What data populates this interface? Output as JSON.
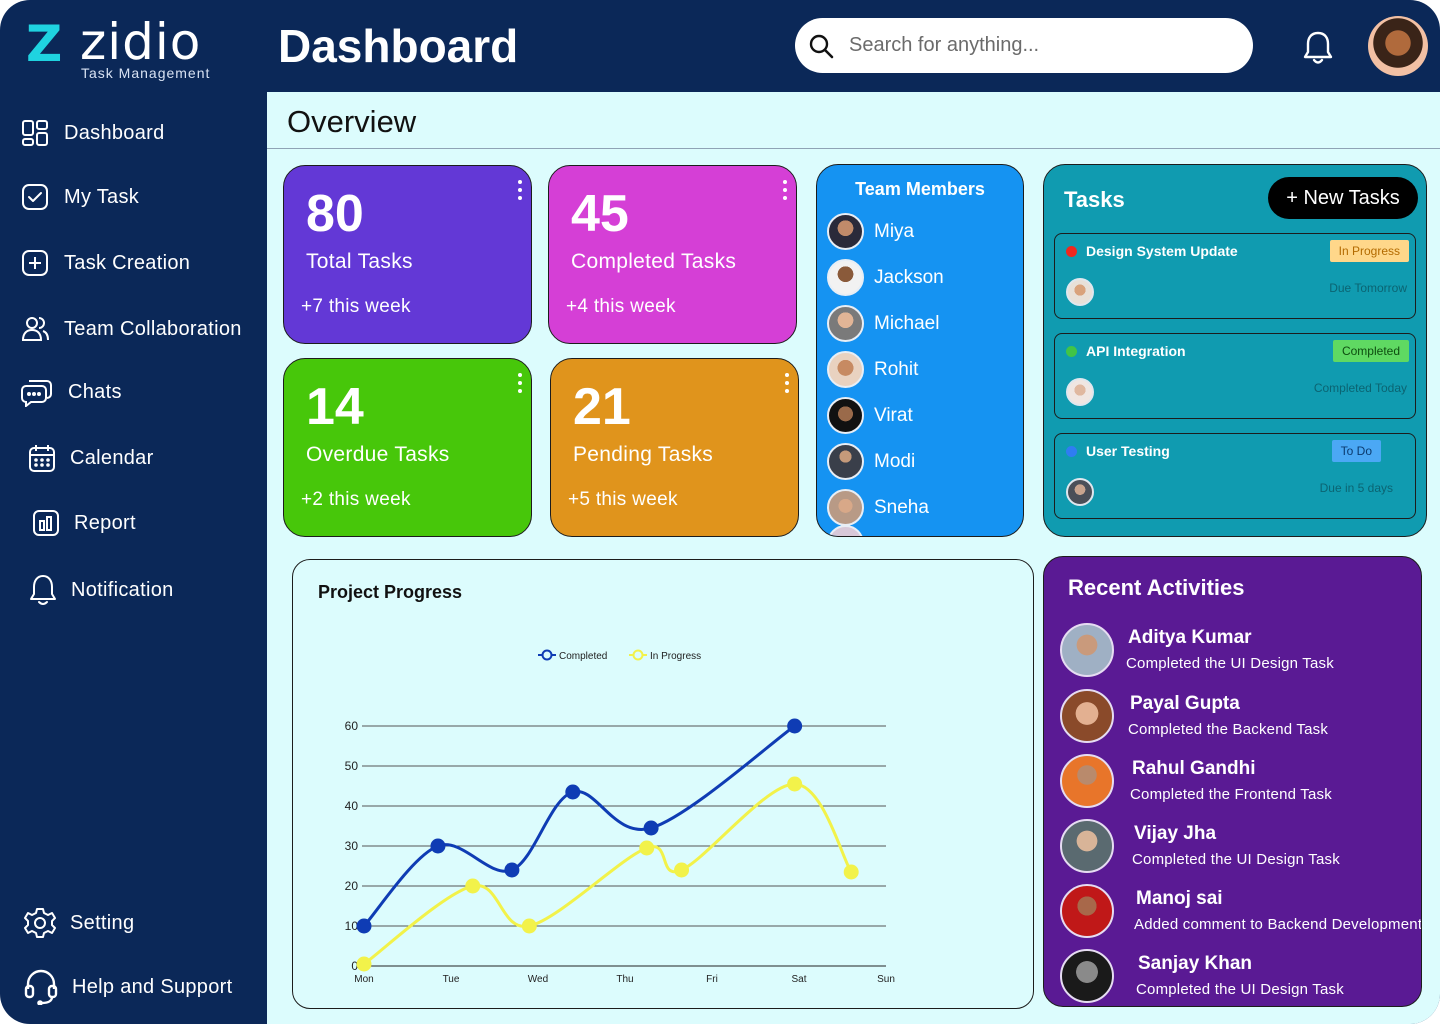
{
  "brand": {
    "name": "zidio",
    "subtitle": "Task Management",
    "accent": "#1fd3e0"
  },
  "header": {
    "title": "Dashboard",
    "search_placeholder": "Search for anything...",
    "bell_icon": "bell-icon",
    "avatar_icon": "user-avatar"
  },
  "sidebar": {
    "items": [
      {
        "label": "Dashboard",
        "icon": "dashboard-grid-icon"
      },
      {
        "label": "My Task",
        "icon": "checkbox-icon"
      },
      {
        "label": "Task Creation",
        "icon": "plus-square-icon"
      },
      {
        "label": "Team Collaboration",
        "icon": "users-icon"
      },
      {
        "label": "Chats",
        "icon": "chat-icon"
      },
      {
        "label": "Calendar",
        "icon": "calendar-icon"
      },
      {
        "label": "Report",
        "icon": "report-icon"
      },
      {
        "label": "Notification",
        "icon": "bell-icon"
      }
    ],
    "bottom": [
      {
        "label": "Setting",
        "icon": "gear-icon"
      },
      {
        "label": "Help and Support",
        "icon": "headset-icon"
      }
    ]
  },
  "overview": {
    "title": "Overview"
  },
  "stats": [
    {
      "value": "80",
      "label": "Total Tasks",
      "week": "+7 this week",
      "color": "#6338d6"
    },
    {
      "value": "45",
      "label": "Completed Tasks",
      "week": "+4 this week",
      "color": "#d53fd6"
    },
    {
      "value": "14",
      "label": "Overdue Tasks",
      "week": "+2 this week",
      "color": "#47c70a"
    },
    {
      "value": "21",
      "label": "Pending Tasks",
      "week": "+5 this week",
      "color": "#e0941c"
    }
  ],
  "team": {
    "title": "Team Members",
    "members": [
      "Miya",
      "Jackson",
      "Michael",
      "Rohit",
      "Virat",
      "Modi",
      "Sneha"
    ]
  },
  "tasks": {
    "title": "Tasks",
    "new_button": "+ New Tasks",
    "items": [
      {
        "title": "Design System Update",
        "status": "In Progress",
        "due": "Due Tomorrow",
        "dot": "#f0281e",
        "badge_bg": "#ffd78a",
        "badge_fg": "#b36a00"
      },
      {
        "title": "API Integration",
        "status": "Completed",
        "due": "Completed Today",
        "dot": "#41c447",
        "badge_bg": "#5fd962",
        "badge_fg": "#0e4d10"
      },
      {
        "title": "User Testing",
        "status": "To Do",
        "due": "Due in 5 days",
        "dot": "#2f7df2",
        "badge_bg": "#4ba8f5",
        "badge_fg": "#0b3a6e"
      }
    ]
  },
  "chart_data": {
    "type": "line",
    "title": "Project Progress",
    "categories": [
      "Mon",
      "Tue",
      "Wed",
      "Thu",
      "Fri",
      "Sat",
      "Sun"
    ],
    "ylim": [
      0,
      60
    ],
    "yticks": [
      "0",
      "10",
      "20",
      "30",
      "40",
      "50",
      "60"
    ],
    "grid": true,
    "legend_position": "top-center",
    "series": [
      {
        "name": "Completed",
        "color": "#0f3cb4",
        "points": [
          [
            0,
            10
          ],
          [
            0.85,
            30
          ],
          [
            1.7,
            24
          ],
          [
            2.4,
            43.5
          ],
          [
            3.3,
            34.5
          ],
          [
            4.95,
            60
          ]
        ]
      },
      {
        "name": "In Progress",
        "color": "#f2f24a",
        "points": [
          [
            0,
            0.5
          ],
          [
            1.25,
            20
          ],
          [
            1.9,
            10
          ],
          [
            3.25,
            29.5
          ],
          [
            3.65,
            24
          ],
          [
            4.95,
            45.5
          ],
          [
            5.6,
            23.5
          ]
        ]
      }
    ]
  },
  "activities": {
    "title": "Recent Activities",
    "items": [
      {
        "name": "Aditya Kumar",
        "desc": "Completed the UI Design Task"
      },
      {
        "name": "Payal Gupta",
        "desc": "Completed the Backend Task"
      },
      {
        "name": "Rahul Gandhi",
        "desc": "Completed the Frontend Task"
      },
      {
        "name": "Vijay Jha",
        "desc": "Completed the UI Design Task"
      },
      {
        "name": "Manoj sai",
        "desc": "Added comment to Backend Development"
      },
      {
        "name": "Sanjay Khan",
        "desc": "Completed the UI Design Task"
      }
    ]
  }
}
